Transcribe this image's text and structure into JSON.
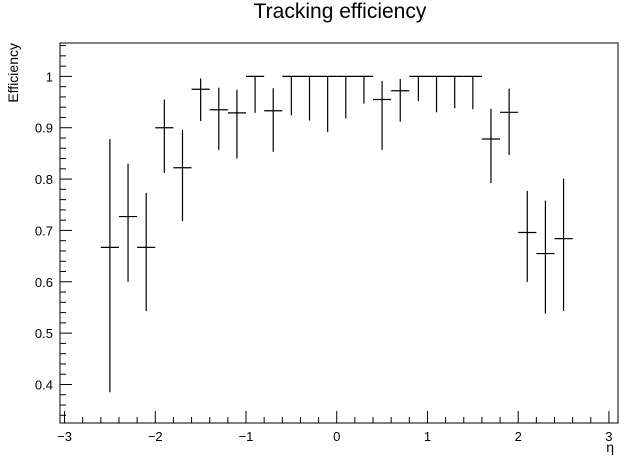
{
  "chart_data": {
    "type": "scatter",
    "title": "Tracking efficiency",
    "xlabel": "η",
    "ylabel": "Efficiency",
    "xlim": [
      -3.05,
      3.1
    ],
    "ylim": [
      0.325,
      1.065
    ],
    "x_ticks": [
      -3,
      -2,
      -1,
      0,
      1,
      2,
      3
    ],
    "x_tick_labels": [
      "−3",
      "−2",
      "−1",
      "0",
      "1",
      "2",
      "3"
    ],
    "y_ticks": [
      0.4,
      0.5,
      0.6,
      0.7,
      0.8,
      0.9,
      1
    ],
    "y_tick_labels": [
      "0.4",
      "0.5",
      "0.6",
      "0.7",
      "0.8",
      "0.9",
      "1"
    ],
    "grid": false,
    "series": [
      {
        "points": [
          {
            "x": -2.5,
            "x_err": 0.1,
            "y": 0.667,
            "y_low": 0.385,
            "y_high": 0.878
          },
          {
            "x": -2.3,
            "x_err": 0.1,
            "y": 0.727,
            "y_low": 0.6,
            "y_high": 0.83
          },
          {
            "x": -2.1,
            "x_err": 0.1,
            "y": 0.667,
            "y_low": 0.543,
            "y_high": 0.773
          },
          {
            "x": -1.9,
            "x_err": 0.1,
            "y": 0.9,
            "y_low": 0.812,
            "y_high": 0.955
          },
          {
            "x": -1.7,
            "x_err": 0.1,
            "y": 0.822,
            "y_low": 0.718,
            "y_high": 0.896
          },
          {
            "x": -1.5,
            "x_err": 0.1,
            "y": 0.975,
            "y_low": 0.913,
            "y_high": 0.996
          },
          {
            "x": -1.3,
            "x_err": 0.1,
            "y": 0.935,
            "y_low": 0.857,
            "y_high": 0.978
          },
          {
            "x": -1.1,
            "x_err": 0.1,
            "y": 0.929,
            "y_low": 0.84,
            "y_high": 0.974
          },
          {
            "x": -0.9,
            "x_err": 0.1,
            "y": 1.0,
            "y_low": 0.929,
            "y_high": 1.0
          },
          {
            "x": -0.7,
            "x_err": 0.1,
            "y": 0.933,
            "y_low": 0.853,
            "y_high": 0.977
          },
          {
            "x": -0.5,
            "x_err": 0.1,
            "y": 1.0,
            "y_low": 0.924,
            "y_high": 1.0
          },
          {
            "x": -0.3,
            "x_err": 0.1,
            "y": 1.0,
            "y_low": 0.914,
            "y_high": 1.0
          },
          {
            "x": -0.1,
            "x_err": 0.1,
            "y": 1.0,
            "y_low": 0.892,
            "y_high": 1.0
          },
          {
            "x": 0.1,
            "x_err": 0.1,
            "y": 1.0,
            "y_low": 0.918,
            "y_high": 1.0
          },
          {
            "x": 0.3,
            "x_err": 0.1,
            "y": 1.0,
            "y_low": 0.947,
            "y_high": 1.0
          },
          {
            "x": 0.5,
            "x_err": 0.1,
            "y": 0.955,
            "y_low": 0.857,
            "y_high": 0.991
          },
          {
            "x": 0.7,
            "x_err": 0.1,
            "y": 0.972,
            "y_low": 0.912,
            "y_high": 0.995
          },
          {
            "x": 0.9,
            "x_err": 0.1,
            "y": 1.0,
            "y_low": 0.952,
            "y_high": 1.0
          },
          {
            "x": 1.1,
            "x_err": 0.1,
            "y": 1.0,
            "y_low": 0.93,
            "y_high": 1.0
          },
          {
            "x": 1.3,
            "x_err": 0.1,
            "y": 1.0,
            "y_low": 0.938,
            "y_high": 1.0
          },
          {
            "x": 1.5,
            "x_err": 0.1,
            "y": 1.0,
            "y_low": 0.936,
            "y_high": 1.0
          },
          {
            "x": 1.7,
            "x_err": 0.1,
            "y": 0.878,
            "y_low": 0.792,
            "y_high": 0.937
          },
          {
            "x": 1.9,
            "x_err": 0.1,
            "y": 0.93,
            "y_low": 0.847,
            "y_high": 0.976
          },
          {
            "x": 2.1,
            "x_err": 0.1,
            "y": 0.696,
            "y_low": 0.6,
            "y_high": 0.777
          },
          {
            "x": 2.3,
            "x_err": 0.1,
            "y": 0.655,
            "y_low": 0.538,
            "y_high": 0.758
          },
          {
            "x": 2.5,
            "x_err": 0.1,
            "y": 0.684,
            "y_low": 0.543,
            "y_high": 0.801
          }
        ]
      }
    ]
  }
}
